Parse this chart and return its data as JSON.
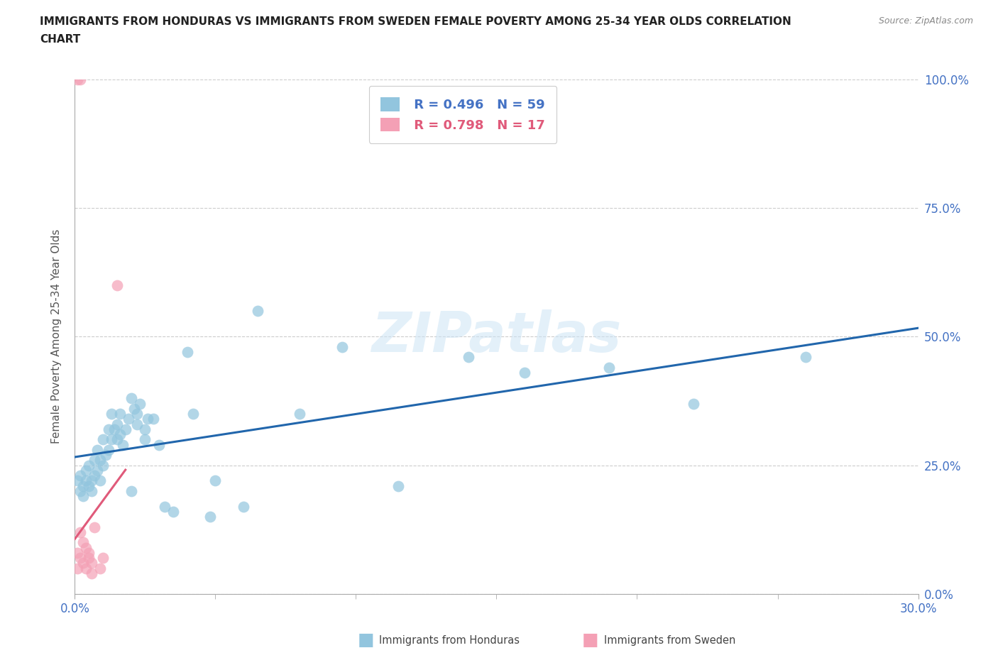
{
  "title_line1": "IMMIGRANTS FROM HONDURAS VS IMMIGRANTS FROM SWEDEN FEMALE POVERTY AMONG 25-34 YEAR OLDS CORRELATION",
  "title_line2": "CHART",
  "source_text": "Source: ZipAtlas.com",
  "ylabel": "Female Poverty Among 25-34 Year Olds",
  "xlim": [
    0,
    0.3
  ],
  "ylim": [
    0,
    1.0
  ],
  "xtick_vals": [
    0.0,
    0.3
  ],
  "ytick_vals": [
    0.0,
    0.25,
    0.5,
    0.75,
    1.0
  ],
  "honduras_color": "#92c5de",
  "sweden_color": "#f4a0b5",
  "honduras_line_color": "#2166ac",
  "sweden_line_color": "#e05a7a",
  "honduras_R": "0.496",
  "honduras_N": "59",
  "sweden_R": "0.798",
  "sweden_N": "17",
  "legend_label_honduras": "Immigrants from Honduras",
  "legend_label_sweden": "Immigrants from Sweden",
  "watermark_text": "ZIPatlas",
  "legend_R_color": "#4472c4",
  "legend_N_color": "#4472c4",
  "axis_color": "#4472c4",
  "honduras_x": [
    0.001,
    0.002,
    0.002,
    0.003,
    0.003,
    0.004,
    0.004,
    0.005,
    0.005,
    0.006,
    0.006,
    0.007,
    0.007,
    0.008,
    0.008,
    0.009,
    0.009,
    0.01,
    0.01,
    0.011,
    0.012,
    0.012,
    0.013,
    0.013,
    0.014,
    0.015,
    0.015,
    0.016,
    0.016,
    0.017,
    0.018,
    0.019,
    0.02,
    0.02,
    0.021,
    0.022,
    0.022,
    0.023,
    0.025,
    0.025,
    0.026,
    0.028,
    0.03,
    0.032,
    0.035,
    0.04,
    0.042,
    0.048,
    0.05,
    0.06,
    0.065,
    0.08,
    0.115,
    0.14,
    0.16,
    0.19,
    0.22,
    0.26,
    0.095
  ],
  "honduras_y": [
    0.22,
    0.2,
    0.23,
    0.21,
    0.19,
    0.22,
    0.24,
    0.21,
    0.25,
    0.22,
    0.2,
    0.23,
    0.26,
    0.24,
    0.28,
    0.22,
    0.26,
    0.25,
    0.3,
    0.27,
    0.28,
    0.32,
    0.3,
    0.35,
    0.32,
    0.3,
    0.33,
    0.31,
    0.35,
    0.29,
    0.32,
    0.34,
    0.38,
    0.2,
    0.36,
    0.33,
    0.35,
    0.37,
    0.3,
    0.32,
    0.34,
    0.34,
    0.29,
    0.17,
    0.16,
    0.47,
    0.35,
    0.15,
    0.22,
    0.17,
    0.55,
    0.35,
    0.21,
    0.46,
    0.43,
    0.44,
    0.37,
    0.46,
    0.48
  ],
  "sweden_x": [
    0.001,
    0.001,
    0.002,
    0.002,
    0.003,
    0.003,
    0.004,
    0.004,
    0.005,
    0.005,
    0.006,
    0.006,
    0.007,
    0.008,
    0.009,
    0.01,
    0.015
  ],
  "sweden_y": [
    0.06,
    0.08,
    0.05,
    0.1,
    0.07,
    0.12,
    0.05,
    0.09,
    0.07,
    0.06,
    0.04,
    0.08,
    0.13,
    0.06,
    0.05,
    0.07,
    0.6
  ],
  "sweden_outlier_x": [
    0.005,
    0.006,
    0.002,
    0.002,
    0.003,
    0.003
  ],
  "sweden_outlier_y": [
    1.0,
    1.0,
    0.05,
    0.1,
    0.07,
    0.12
  ],
  "sweden_low_x": [
    0.001,
    0.002,
    0.003,
    0.003,
    0.004,
    0.005
  ],
  "sweden_low_y": [
    0.07,
    0.08,
    0.1,
    0.06,
    0.05,
    0.08
  ]
}
